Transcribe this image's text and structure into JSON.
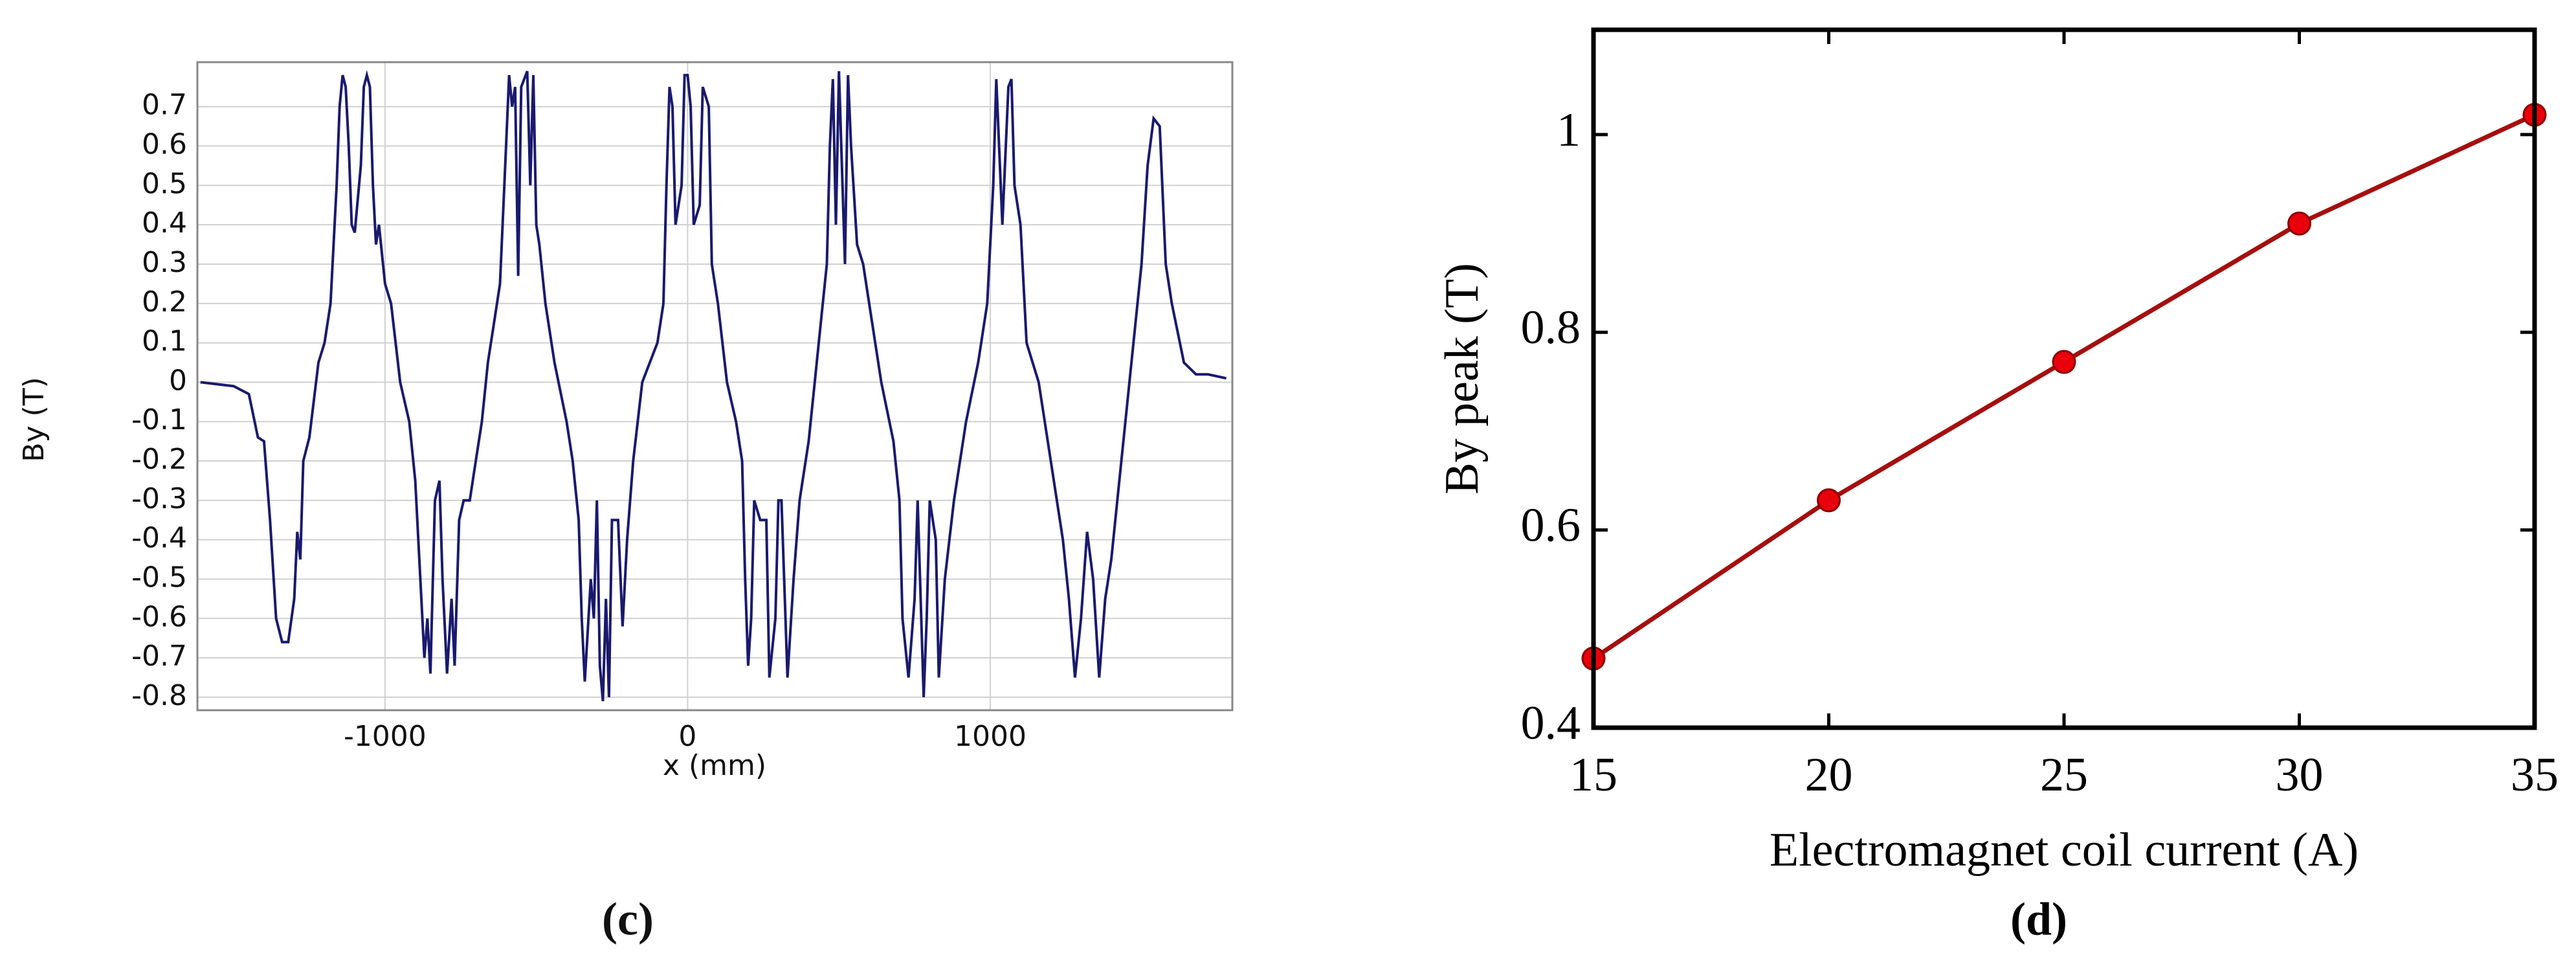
{
  "chart_data": [
    {
      "type": "line",
      "caption": "(c)",
      "ylabel": "By (T)",
      "xlabel": "x (mm)",
      "color": "#1a1a6e",
      "grid": true,
      "xlim": [
        -1620,
        1800
      ],
      "xticks": [
        -1000,
        0,
        1000
      ],
      "ylim": [
        -0.833,
        0.813
      ],
      "yticks": [
        -0.8,
        -0.7,
        -0.6,
        -0.5,
        -0.4,
        -0.3,
        -0.2,
        -0.1,
        0,
        0.1,
        0.2,
        0.3,
        0.4,
        0.5,
        0.6,
        0.7
      ],
      "x": [
        -1610,
        -1500,
        -1450,
        -1420,
        -1400,
        -1380,
        -1360,
        -1340,
        -1320,
        -1300,
        -1290,
        -1280,
        -1270,
        -1250,
        -1220,
        -1200,
        -1180,
        -1160,
        -1150,
        -1140,
        -1130,
        -1120,
        -1110,
        -1100,
        -1080,
        -1070,
        -1060,
        -1050,
        -1040,
        -1030,
        -1020,
        -1000,
        -980,
        -950,
        -920,
        -900,
        -880,
        -870,
        -860,
        -850,
        -835,
        -820,
        -810,
        -795,
        -780,
        -770,
        -755,
        -740,
        -720,
        -700,
        -680,
        -660,
        -640,
        -620,
        -600,
        -590,
        -580,
        -570,
        -560,
        -550,
        -530,
        -520,
        -510,
        -500,
        -490,
        -470,
        -440,
        -400,
        -380,
        -360,
        -350,
        -340,
        -320,
        -310,
        -300,
        -290,
        -280,
        -270,
        -260,
        -250,
        -230,
        -215,
        -200,
        -180,
        -150,
        -100,
        -80,
        -70,
        -60,
        -50,
        -40,
        -20,
        -10,
        0,
        10,
        20,
        40,
        50,
        70,
        80,
        100,
        130,
        160,
        180,
        190,
        200,
        210,
        220,
        240,
        260,
        270,
        290,
        300,
        310,
        330,
        350,
        370,
        400,
        420,
        440,
        460,
        470,
        480,
        490,
        500,
        520,
        530,
        540,
        560,
        580,
        600,
        640,
        680,
        700,
        710,
        730,
        750,
        760,
        780,
        790,
        800,
        820,
        830,
        850,
        880,
        920,
        960,
        990,
        1010,
        1020,
        1040,
        1060,
        1070,
        1080,
        1100,
        1120,
        1160,
        1200,
        1240,
        1260,
        1280,
        1300,
        1320,
        1340,
        1360,
        1380,
        1400,
        1420,
        1460,
        1500,
        1520,
        1540,
        1560,
        1580,
        1600,
        1640,
        1680,
        1720,
        1780
      ],
      "values": [
        0,
        -0.01,
        -0.03,
        -0.14,
        -0.15,
        -0.35,
        -0.6,
        -0.66,
        -0.66,
        -0.55,
        -0.38,
        -0.45,
        -0.2,
        -0.14,
        0.05,
        0.1,
        0.2,
        0.5,
        0.7,
        0.78,
        0.75,
        0.6,
        0.4,
        0.38,
        0.55,
        0.75,
        0.78,
        0.75,
        0.5,
        0.35,
        0.4,
        0.25,
        0.2,
        0,
        -0.1,
        -0.25,
        -0.55,
        -0.7,
        -0.6,
        -0.74,
        -0.3,
        -0.25,
        -0.5,
        -0.74,
        -0.55,
        -0.72,
        -0.35,
        -0.3,
        -0.3,
        -0.2,
        -0.1,
        0.05,
        0.15,
        0.25,
        0.6,
        0.78,
        0.7,
        0.75,
        0.27,
        0.75,
        0.79,
        0.5,
        0.78,
        0.4,
        0.35,
        0.2,
        0.05,
        -0.1,
        -0.2,
        -0.35,
        -0.6,
        -0.76,
        -0.5,
        -0.6,
        -0.3,
        -0.72,
        -0.81,
        -0.55,
        -0.8,
        -0.35,
        -0.35,
        -0.62,
        -0.4,
        -0.2,
        0,
        0.1,
        0.2,
        0.5,
        0.75,
        0.7,
        0.4,
        0.5,
        0.78,
        0.78,
        0.7,
        0.4,
        0.45,
        0.75,
        0.7,
        0.3,
        0.2,
        0,
        -0.1,
        -0.2,
        -0.5,
        -0.72,
        -0.6,
        -0.3,
        -0.35,
        -0.35,
        -0.75,
        -0.6,
        -0.3,
        -0.3,
        -0.75,
        -0.5,
        -0.3,
        -0.15,
        0,
        0.15,
        0.3,
        0.6,
        0.77,
        0.4,
        0.79,
        0.3,
        0.78,
        0.6,
        0.35,
        0.3,
        0.2,
        0,
        -0.15,
        -0.3,
        -0.6,
        -0.75,
        -0.55,
        -0.3,
        -0.8,
        -0.6,
        -0.3,
        -0.4,
        -0.75,
        -0.5,
        -0.3,
        -0.1,
        0.05,
        0.2,
        0.5,
        0.77,
        0.4,
        0.75,
        0.77,
        0.5,
        0.4,
        0.1,
        0,
        -0.2,
        -0.4,
        -0.55,
        -0.75,
        -0.6,
        -0.38,
        -0.5,
        -0.75,
        -0.55,
        -0.45,
        -0.3,
        0,
        0.3,
        0.55,
        0.67,
        0.65,
        0.3,
        0.2,
        0.05,
        0.02,
        0.02,
        0.01
      ]
    },
    {
      "type": "line",
      "caption": "(d)",
      "ylabel": "By peak (T)",
      "xlabel": "Electromagnet coil current (A)",
      "color": "#a50f0f",
      "marker_color": "#e8000b",
      "grid": false,
      "xlim": [
        15,
        35
      ],
      "xticks": [
        15,
        20,
        25,
        30,
        35
      ],
      "ylim": [
        0.4,
        1.106
      ],
      "yticks": [
        0.4,
        0.6,
        0.8,
        1
      ],
      "x": [
        15,
        20,
        25,
        30,
        35
      ],
      "values": [
        0.47,
        0.63,
        0.77,
        0.91,
        1.02
      ]
    }
  ]
}
